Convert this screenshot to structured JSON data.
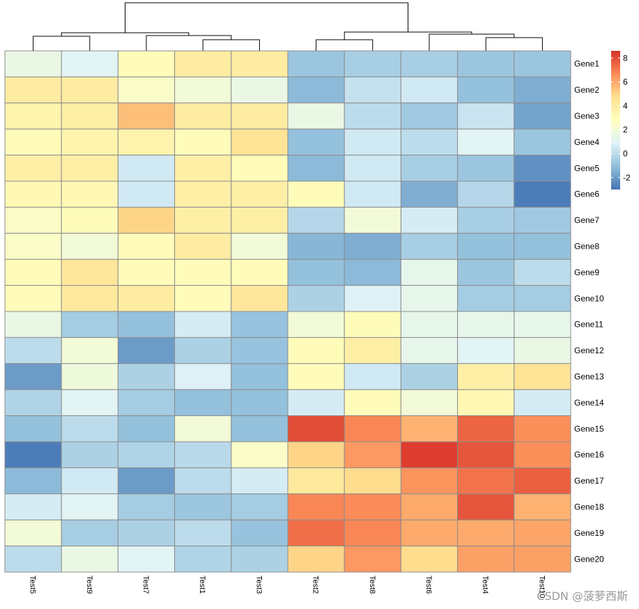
{
  "chart_data": {
    "type": "heatmap",
    "columns": [
      "Test5",
      "Test9",
      "Test7",
      "Test1",
      "Test3",
      "Test2",
      "Test8",
      "Test6",
      "Test4",
      "Test10"
    ],
    "rows": [
      "Gene1",
      "Gene2",
      "Gene3",
      "Gene4",
      "Gene5",
      "Gene6",
      "Gene7",
      "Gene8",
      "Gene9",
      "Gene10",
      "Gene11",
      "Gene12",
      "Gene13",
      "Gene14",
      "Gene15",
      "Gene16",
      "Gene17",
      "Gene18",
      "Gene19",
      "Gene20"
    ],
    "values": [
      [
        1.5,
        1.0,
        3.0,
        4.0,
        4.0,
        -0.8,
        -0.5,
        -0.5,
        -0.8,
        -0.8
      ],
      [
        4.0,
        4.0,
        2.5,
        2.0,
        1.5,
        -1.2,
        0.2,
        0.5,
        -1.0,
        -1.5
      ],
      [
        3.5,
        3.8,
        5.5,
        4.0,
        4.0,
        1.5,
        0.0,
        -0.7,
        0.3,
        -1.8
      ],
      [
        3.0,
        3.5,
        3.5,
        3.0,
        4.5,
        -1.0,
        0.5,
        0.0,
        1.0,
        -0.8
      ],
      [
        3.8,
        3.8,
        0.5,
        3.8,
        3.0,
        -1.2,
        0.5,
        -0.5,
        -0.8,
        -2.3
      ],
      [
        3.2,
        3.2,
        0.5,
        3.8,
        3.8,
        3.0,
        0.5,
        -1.5,
        -0.2,
        -2.8
      ],
      [
        2.5,
        3.0,
        5.0,
        3.8,
        3.8,
        -0.2,
        2.0,
        0.6,
        -0.5,
        -0.7
      ],
      [
        2.5,
        2.0,
        3.0,
        4.0,
        2.0,
        -1.3,
        -1.5,
        -0.5,
        -1.0,
        -1.0
      ],
      [
        3.0,
        4.3,
        3.0,
        3.0,
        3.0,
        -1.0,
        -1.2,
        1.3,
        -0.8,
        0.0
      ],
      [
        3.0,
        4.2,
        4.0,
        3.0,
        4.3,
        -0.4,
        0.8,
        1.3,
        -0.6,
        -0.6
      ],
      [
        1.5,
        -0.6,
        -1.0,
        0.6,
        -0.9,
        2.0,
        3.0,
        1.3,
        1.3,
        1.3
      ],
      [
        0.0,
        2.0,
        -2.0,
        -0.4,
        -0.9,
        3.0,
        3.8,
        1.3,
        1.0,
        1.5
      ],
      [
        -2.0,
        1.8,
        -0.4,
        0.8,
        -1.0,
        3.0,
        0.5,
        -0.4,
        3.8,
        4.5
      ],
      [
        -0.3,
        1.0,
        -0.6,
        -1.0,
        -1.0,
        0.6,
        3.0,
        2.0,
        3.3,
        0.6
      ],
      [
        -1.0,
        0.0,
        -1.0,
        2.0,
        -1.0,
        8.0,
        6.8,
        5.8,
        7.5,
        6.6
      ],
      [
        -2.8,
        -0.4,
        -0.3,
        -0.1,
        2.5,
        5.0,
        6.4,
        8.3,
        7.8,
        6.6
      ],
      [
        -1.2,
        0.5,
        -2.0,
        0.0,
        0.6,
        4.2,
        4.8,
        6.5,
        7.2,
        7.6
      ],
      [
        0.6,
        1.0,
        -0.6,
        -0.8,
        -0.6,
        6.8,
        6.7,
        6.0,
        7.8,
        5.8
      ],
      [
        2.0,
        -0.5,
        -0.4,
        0.0,
        -0.9,
        7.3,
        6.8,
        6.0,
        6.0,
        6.1
      ],
      [
        0.0,
        1.5,
        1.0,
        -0.3,
        -0.4,
        5.0,
        6.4,
        4.8,
        6.2,
        6.2
      ]
    ],
    "legend": {
      "ticks": [
        -2,
        0,
        2,
        4,
        6,
        8
      ],
      "min": -3,
      "max": 8.6
    },
    "colors": [
      "#4575b4",
      "#91bfdb",
      "#e0f3f8",
      "#ffffbf",
      "#fee090",
      "#fc8d59",
      "#d73027"
    ],
    "dendrogram": "top"
  },
  "watermark": "CSDN @菠萝西斯"
}
